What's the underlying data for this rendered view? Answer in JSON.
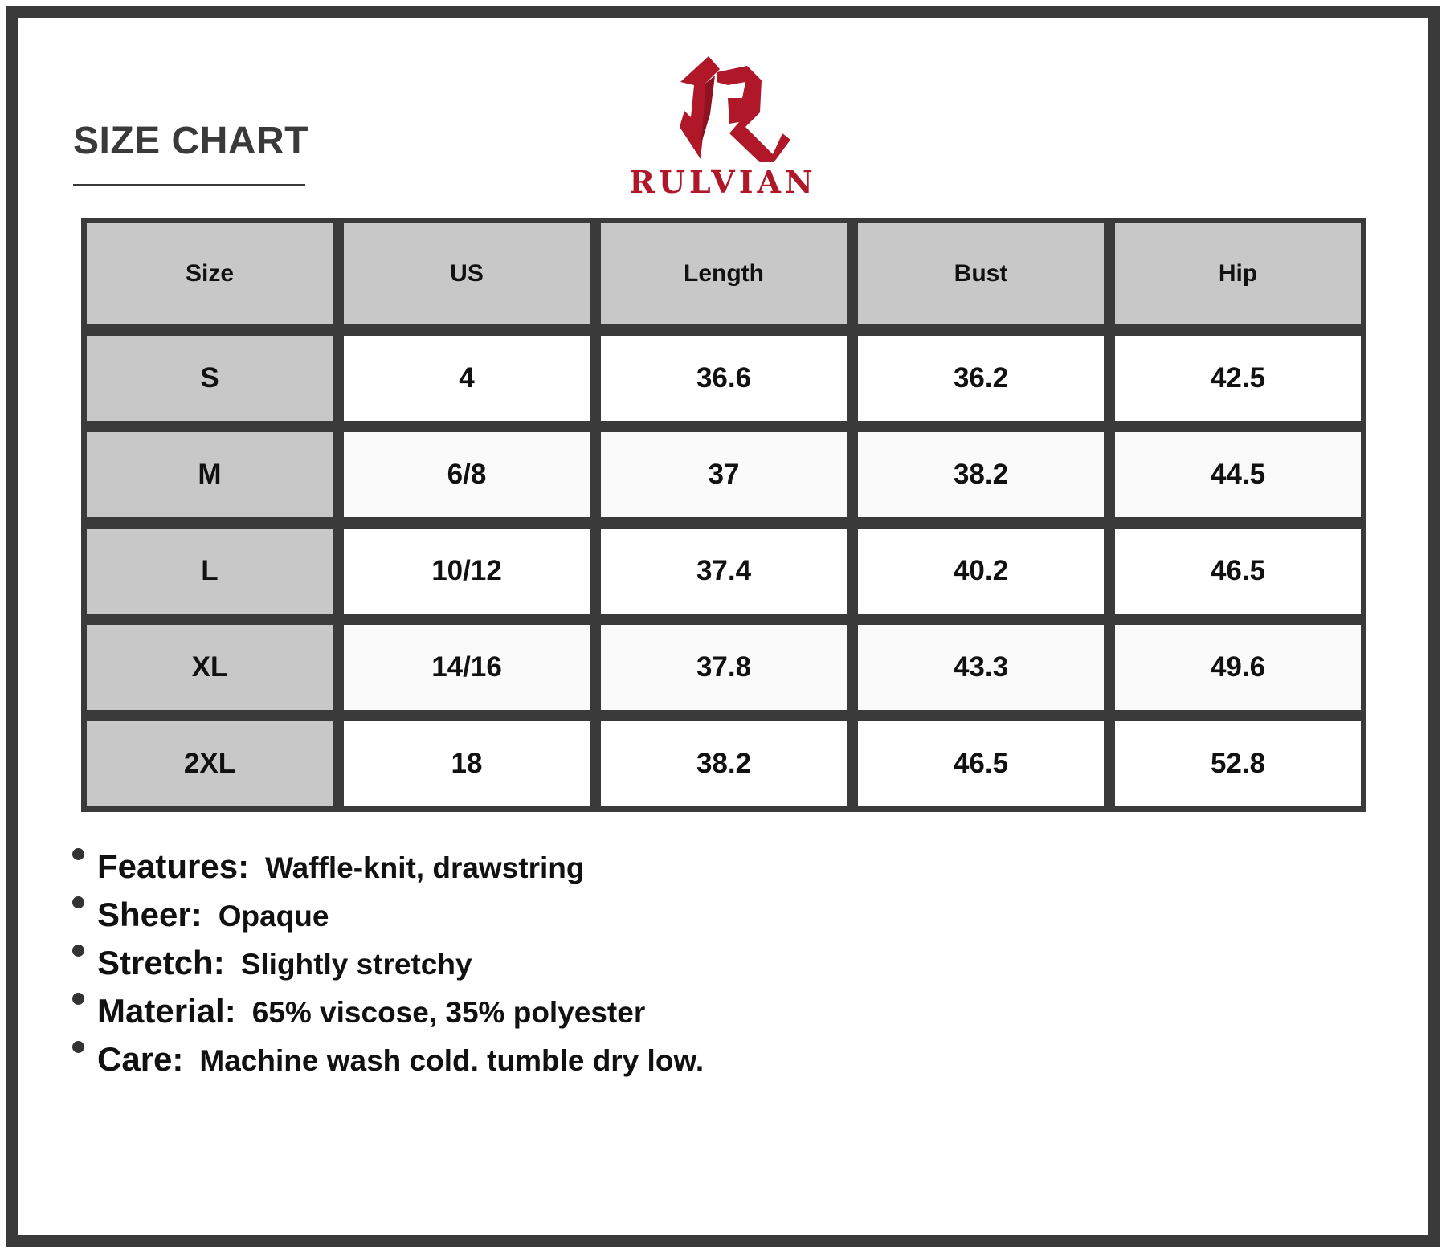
{
  "title": "SIZE CHART",
  "brand": {
    "name": "RULVIAN",
    "color": "#b0182a"
  },
  "table": {
    "headers": [
      "Size",
      "US",
      "Length",
      "Bust",
      "Hip"
    ],
    "rows": [
      [
        "S",
        "4",
        "36.6",
        "36.2",
        "42.5"
      ],
      [
        "M",
        "6/8",
        "37",
        "38.2",
        "44.5"
      ],
      [
        "L",
        "10/12",
        "37.4",
        "40.2",
        "46.5"
      ],
      [
        "XL",
        "14/16",
        "37.8",
        "43.3",
        "49.6"
      ],
      [
        "2XL",
        "18",
        "38.2",
        "46.5",
        "52.8"
      ]
    ]
  },
  "notes": [
    {
      "label": "Features:",
      "value": "Waffle-knit, drawstring"
    },
    {
      "label": "Sheer:",
      "value": "Opaque"
    },
    {
      "label": "Stretch:",
      "value": "Slightly stretchy"
    },
    {
      "label": "Material:",
      "value": "65% viscose, 35% polyester"
    },
    {
      "label": "Care:",
      "value": "Machine wash cold. tumble dry low."
    }
  ]
}
